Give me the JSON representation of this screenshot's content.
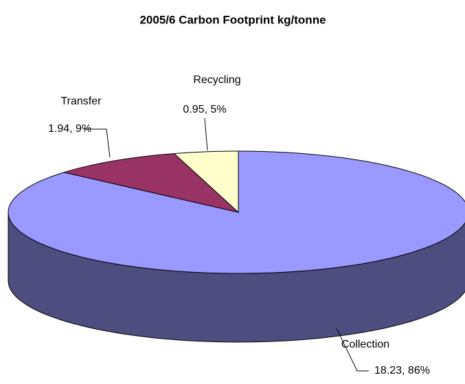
{
  "chart_data": {
    "type": "pie",
    "title": "2005/6 Carbon Footprint kg/tonne",
    "categories": [
      "Collection",
      "Transfer",
      "Recycling"
    ],
    "values": [
      18.23,
      1.94,
      0.95
    ],
    "value_labels": [
      "18.23, 86%",
      "1.94, 9%",
      "0.95, 5%"
    ],
    "colors": [
      "#9999ff",
      "#993366",
      "#ffffcc"
    ]
  }
}
